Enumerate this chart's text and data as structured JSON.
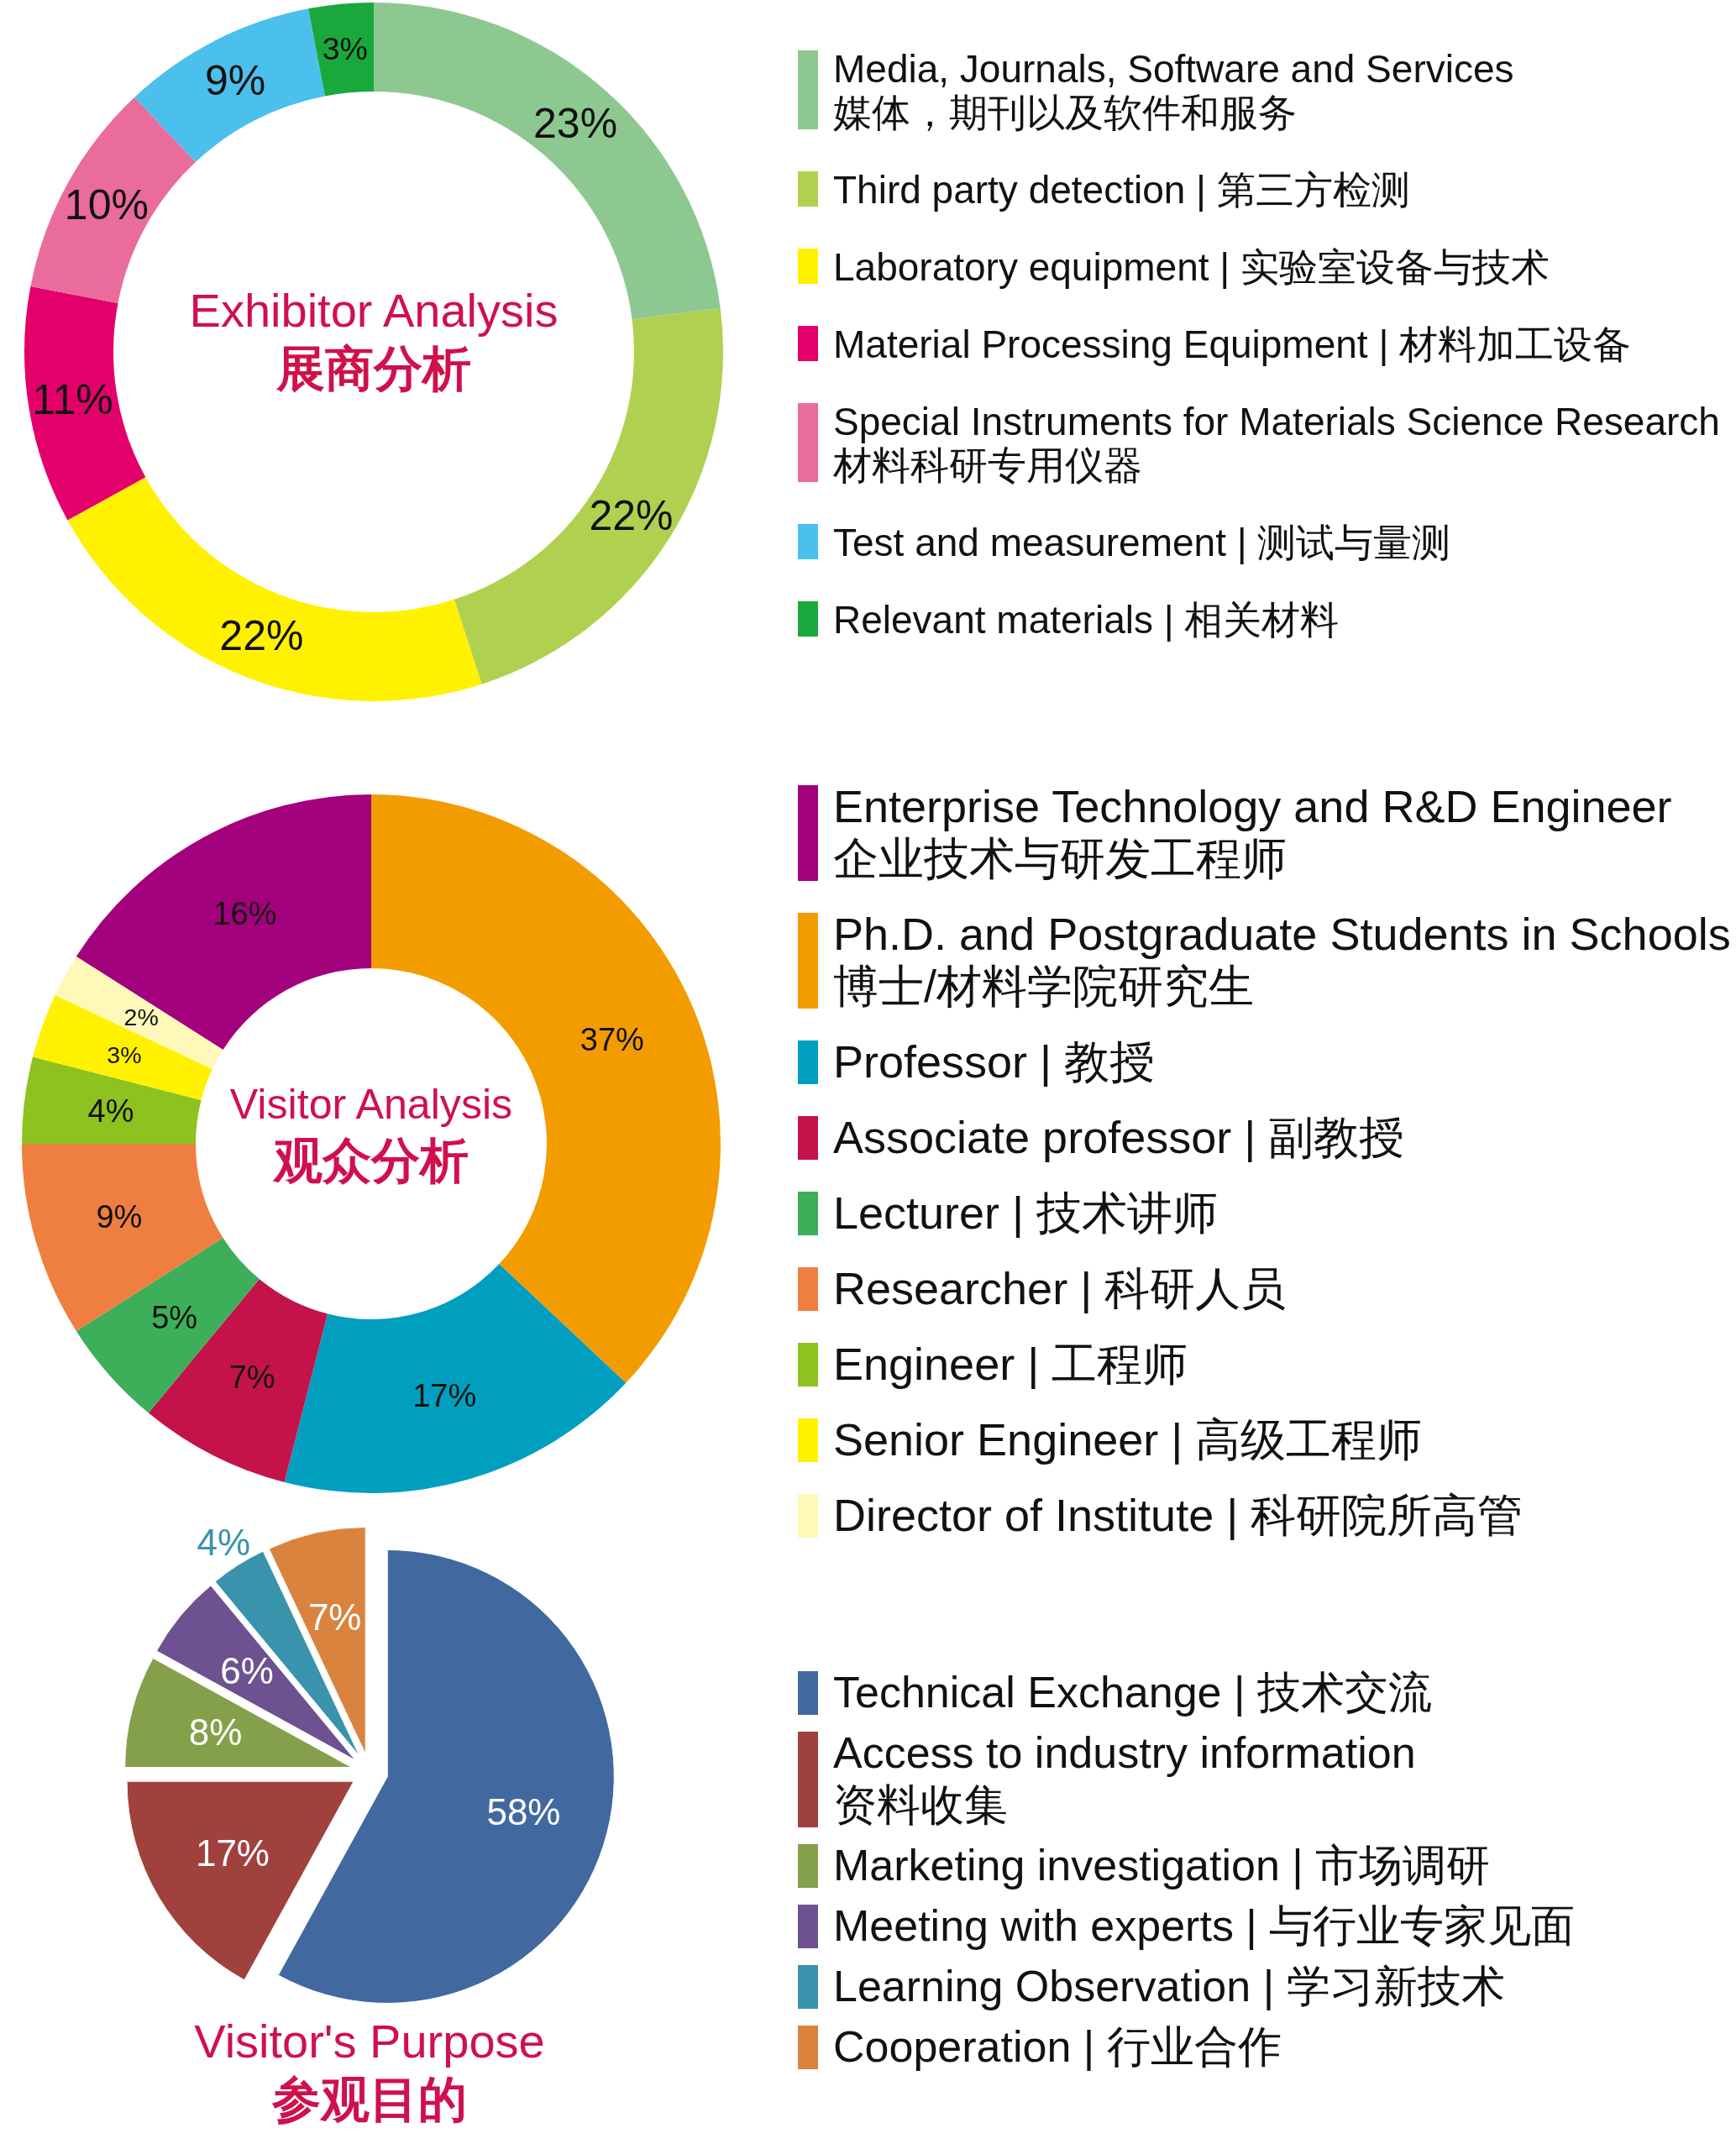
{
  "chart_data": [
    {
      "type": "donut",
      "title": "Exhibitor Analysis",
      "subtitle": "展商分析",
      "legend": "right",
      "categories": [
        "Media, Journals, Software and Services\n媒体，期刊以及软件和服务",
        "Third party detection | 第三方检测",
        "Laboratory equipment | 实验室设备与技术",
        "Material Processing Equipment | 材料加工设备",
        "Special Instruments for Materials Science Research\n材料科研专用仪器",
        "Test and measurement | 测试与量测",
        "Relevant materials | 相关材料"
      ],
      "values": [
        23,
        22,
        22,
        11,
        10,
        9,
        3
      ],
      "value_labels": [
        "23%",
        "22%",
        "22%",
        "11%",
        "10%",
        "9%",
        "3%"
      ],
      "colors": [
        "#8dc891",
        "#afd14f",
        "#fff100",
        "#e4006a",
        "#ea6c9a",
        "#4bc0ec",
        "#1aa83c"
      ]
    },
    {
      "type": "donut",
      "title": "Visitor Analysis",
      "subtitle": "观众分析",
      "legend": "right",
      "categories": [
        "Enterprise Technology and R&D Engineer\n企业技术与研发工程师",
        "Ph.D. and Postgraduate Students in Schools\n博士/材料学院研究生",
        "Professor | 教授",
        "Associate professor | 副教授",
        "Lecturer | 技术讲师",
        "Researcher | 科研人员",
        "Engineer | 工程师",
        "Senior Engineer | 高级工程师",
        "Director of Institute | 科研院所高管"
      ],
      "values": [
        16,
        37,
        17,
        7,
        5,
        9,
        4,
        3,
        2
      ],
      "value_labels": [
        "16%",
        "37%",
        "17%",
        "7%",
        "5%",
        "9%",
        "4%",
        "3%",
        "2%"
      ],
      "colors": [
        "#a3007d",
        "#f39c00",
        "#009fbf",
        "#c4124a",
        "#3daf5a",
        "#ef7f41",
        "#8dc21f",
        "#fff100",
        "#fff8b8"
      ]
    },
    {
      "type": "pie",
      "title": "Visitor's Purpose",
      "subtitle": "参观目的",
      "legend": "right",
      "categories": [
        "Technical Exchange | 技术交流",
        "Access to industry information\n资料收集",
        "Marketing investigation | 市场调研",
        "Meeting with experts | 与行业专家见面",
        "Learning Observation | 学习新技术",
        "Cooperation | 行业合作"
      ],
      "values": [
        58,
        17,
        8,
        6,
        4,
        7
      ],
      "value_labels": [
        "58%",
        "17%",
        "8%",
        "6%",
        "4%",
        "7%"
      ],
      "colors": [
        "#4169a0",
        "#a0413e",
        "#84a04b",
        "#6d5190",
        "#3a93ad",
        "#d9833f"
      ]
    }
  ]
}
